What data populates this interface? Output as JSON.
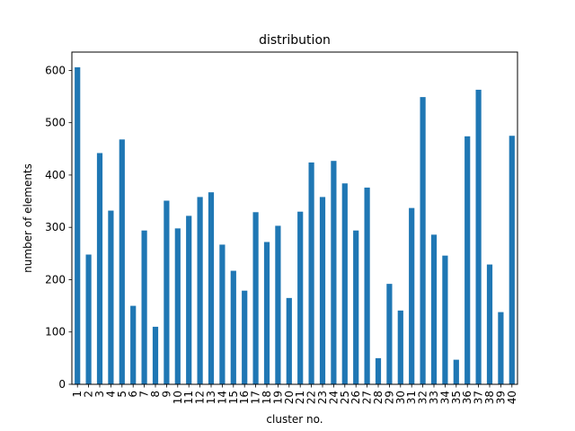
{
  "chart_data": {
    "type": "bar",
    "title": "distribution",
    "xlabel": "cluster no.",
    "ylabel": "number of elements",
    "ylim": [
      0,
      635
    ],
    "yticks": [
      0,
      100,
      200,
      300,
      400,
      500,
      600
    ],
    "grid": false,
    "legend": "none",
    "bar_color": "#1f77b4",
    "categories": [
      "1",
      "2",
      "3",
      "4",
      "5",
      "6",
      "7",
      "8",
      "9",
      "10",
      "11",
      "12",
      "13",
      "14",
      "15",
      "16",
      "17",
      "18",
      "19",
      "20",
      "21",
      "22",
      "23",
      "24",
      "25",
      "26",
      "27",
      "28",
      "29",
      "30",
      "31",
      "32",
      "33",
      "34",
      "35",
      "36",
      "37",
      "38",
      "39",
      "40"
    ],
    "values": [
      606,
      248,
      442,
      332,
      468,
      150,
      294,
      110,
      351,
      298,
      322,
      358,
      367,
      267,
      217,
      179,
      329,
      272,
      303,
      165,
      330,
      424,
      358,
      427,
      384,
      294,
      376,
      50,
      192,
      141,
      337,
      549,
      286,
      246,
      47,
      474,
      563,
      229,
      138,
      475
    ]
  }
}
